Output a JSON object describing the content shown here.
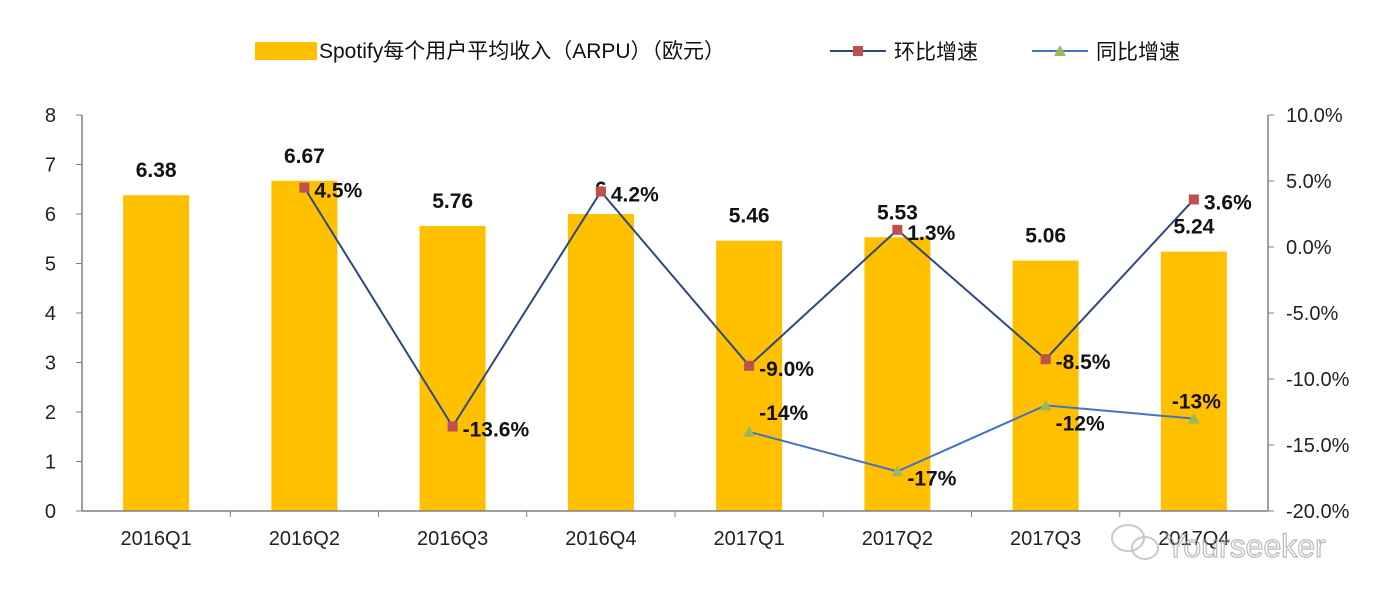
{
  "chart_data": {
    "type": "bar+line",
    "categories": [
      "2016Q1",
      "2016Q2",
      "2016Q3",
      "2016Q4",
      "2017Q1",
      "2017Q2",
      "2017Q3",
      "2017Q4"
    ],
    "bar_series": {
      "name": "Spotify每个用户平均收入（ARPU）（欧元）",
      "values": [
        6.38,
        6.67,
        5.76,
        6,
        5.46,
        5.53,
        5.06,
        5.24
      ],
      "labels": [
        "6.38",
        "6.67",
        "5.76",
        "6",
        "5.46",
        "5.53",
        "5.06",
        "5.24"
      ],
      "color": "#FFC000",
      "axis": "left"
    },
    "line_series": [
      {
        "name": "环比增速",
        "values": [
          null,
          4.5,
          -13.6,
          4.2,
          -9.0,
          1.3,
          -8.5,
          3.6
        ],
        "labels": [
          null,
          "4.5%",
          "-13.6%",
          "4.2%",
          "-9.0%",
          "1.3%",
          "-8.5%",
          "3.6%"
        ],
        "color": "#2E4A7D",
        "marker": "square",
        "marker_color": "#C0504D",
        "axis": "right"
      },
      {
        "name": "同比增速",
        "values": [
          null,
          null,
          null,
          null,
          -14,
          -17,
          -12,
          -13
        ],
        "labels": [
          null,
          null,
          null,
          null,
          "-14%",
          "-17%",
          "-12%",
          "-13%"
        ],
        "color": "#4472C4",
        "marker": "triangle",
        "marker_color": "#9BBB59",
        "axis": "right"
      }
    ],
    "left_axis": {
      "ylim": [
        0,
        8
      ],
      "ticks": [
        "0",
        "1",
        "2",
        "3",
        "4",
        "5",
        "6",
        "7",
        "8"
      ]
    },
    "right_axis": {
      "ylim": [
        -20,
        10
      ],
      "ticks": [
        "-20.0%",
        "-15.0%",
        "-10.0%",
        "-5.0%",
        "0.0%",
        "5.0%",
        "10.0%"
      ]
    },
    "grid": false,
    "legend_placement": "top"
  },
  "watermark": "Yourseeker"
}
